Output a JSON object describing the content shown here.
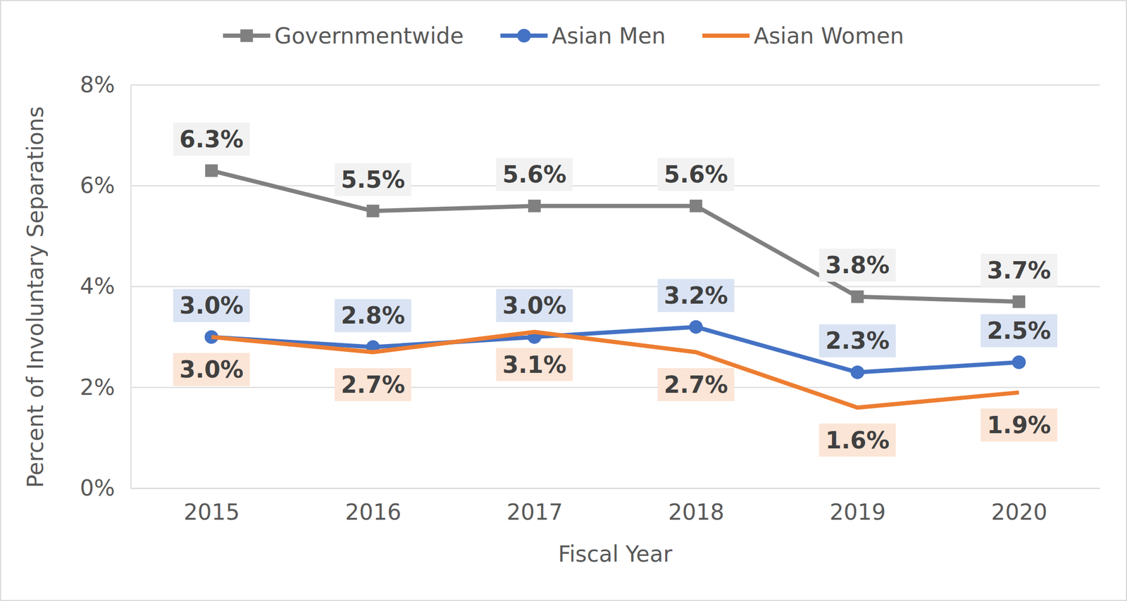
{
  "chart_data": {
    "type": "line",
    "x_label": "Fiscal Year",
    "y_label": "Percent of Involuntary Separations",
    "categories": [
      "2015",
      "2016",
      "2017",
      "2018",
      "2019",
      "2020"
    ],
    "series": [
      {
        "name": "Governmentwide",
        "color": "#808080",
        "marker": "square",
        "values": [
          6.3,
          5.5,
          5.6,
          5.6,
          3.8,
          3.7
        ],
        "value_labels": [
          "6.3%",
          "5.5%",
          "5.6%",
          "5.6%",
          "3.8%",
          "3.7%"
        ]
      },
      {
        "name": "Asian Men",
        "color": "#4472c4",
        "marker": "circle",
        "values": [
          3.0,
          2.8,
          3.0,
          3.2,
          2.3,
          2.5
        ],
        "value_labels": [
          "3.0%",
          "2.8%",
          "3.0%",
          "3.2%",
          "2.3%",
          "2.5%"
        ]
      },
      {
        "name": "Asian Women",
        "color": "#ed7d31",
        "marker": "none",
        "values": [
          3.0,
          2.7,
          3.1,
          2.7,
          1.6,
          1.9
        ],
        "value_labels": [
          "3.0%",
          "2.7%",
          "3.1%",
          "2.7%",
          "1.6%",
          "1.9%"
        ]
      }
    ],
    "ylim": [
      0,
      8
    ],
    "yticks": [
      {
        "value": 0,
        "label": "0%"
      },
      {
        "value": 2,
        "label": "2%"
      },
      {
        "value": 4,
        "label": "4%"
      },
      {
        "value": 6,
        "label": "6%"
      },
      {
        "value": 8,
        "label": "8%"
      }
    ],
    "grid": true,
    "legend": "top",
    "data_labels": true
  }
}
